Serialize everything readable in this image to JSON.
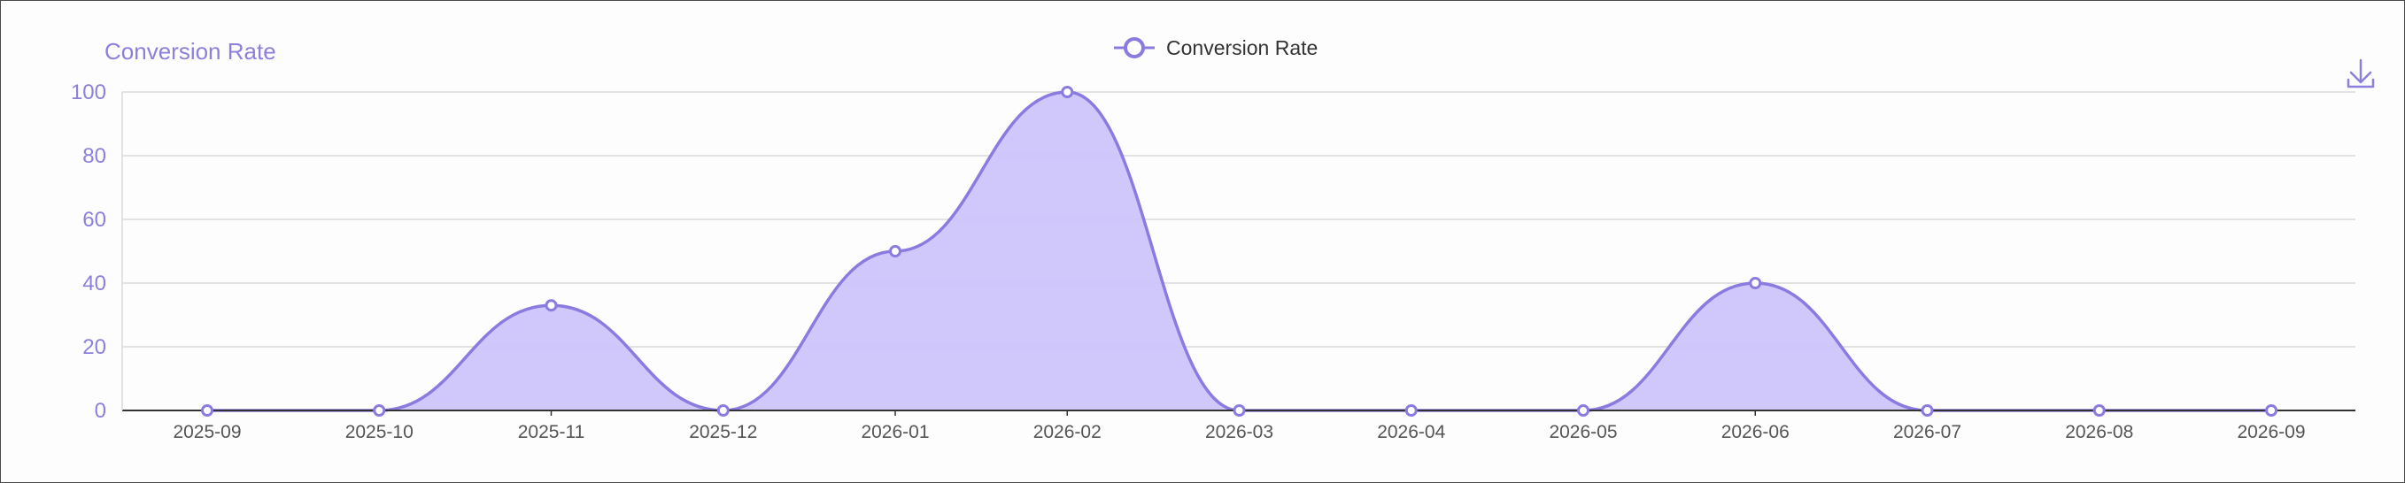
{
  "chart_data": {
    "type": "area",
    "title": "",
    "ylabel": "Conversion Rate",
    "xlabel": "",
    "categories": [
      "2025-09",
      "2025-10",
      "2025-11",
      "2025-12",
      "2026-01",
      "2026-02",
      "2026-03",
      "2026-04",
      "2026-05",
      "2026-06",
      "2026-07",
      "2026-08",
      "2026-09"
    ],
    "series": [
      {
        "name": "Conversion Rate",
        "values": [
          0,
          0,
          33,
          0,
          50,
          100,
          0,
          0,
          0,
          40,
          0,
          0,
          0
        ]
      }
    ],
    "ylim": [
      0,
      100
    ],
    "yticks": [
      0,
      20,
      40,
      60,
      80,
      100
    ],
    "grid": true,
    "legend": "top-center",
    "smooth": true
  },
  "colors": {
    "line": "#8a7be0",
    "fill": "#cdc5fb",
    "axis_text": "#8c80dc",
    "grid": "#d9d9d9",
    "axis": "#333333"
  },
  "toolbar": {
    "download_icon": "download-icon"
  }
}
